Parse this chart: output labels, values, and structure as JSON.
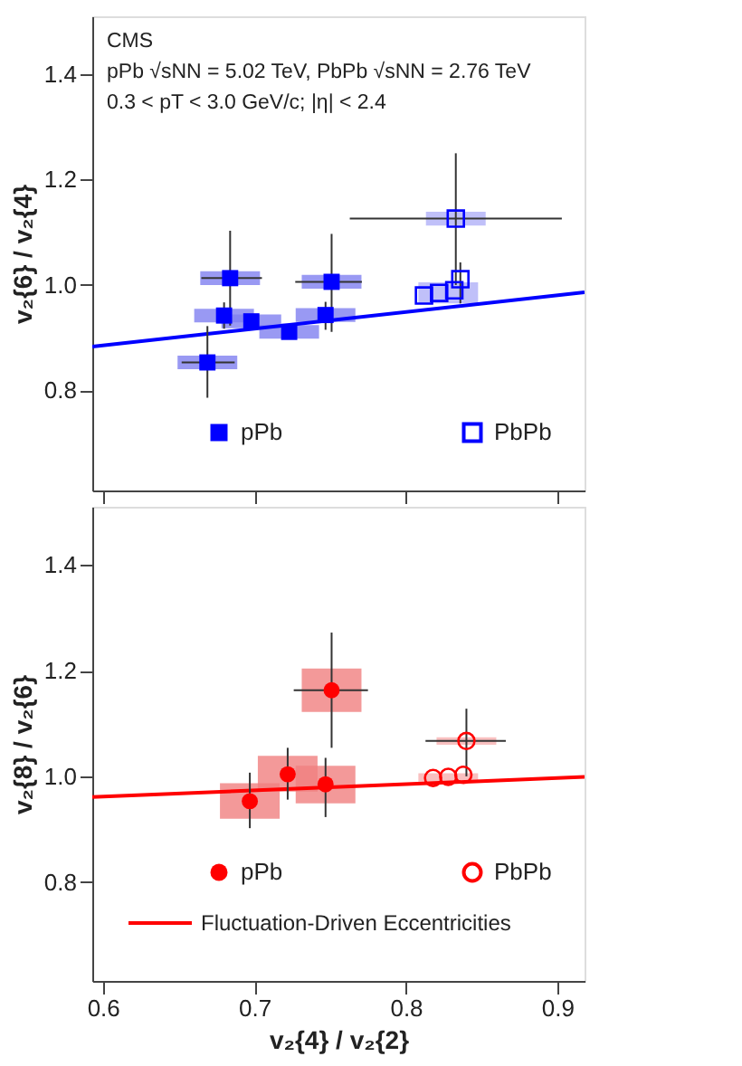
{
  "chart_data": [
    {
      "type": "scatter",
      "ylabel": "v₂{6} / v₂{4}",
      "xlim": [
        0.593,
        0.918
      ],
      "xticks": [
        0.6,
        0.7,
        0.8,
        0.9
      ],
      "ylim": [
        0.61,
        1.51
      ],
      "yticks": [
        0.8,
        {
          "value": 1.0,
          "label": "1.0"
        },
        1.2,
        1.4
      ],
      "tick_labels": "y",
      "grid": false,
      "legend": "bottom",
      "annotations": [
        "CMS",
        "pPb √sNN = 5.02 TeV, PbPb √sNN = 2.76 TeV",
        "0.3 < pT < 3.0 GeV/c; |η| < 2.4"
      ],
      "series": [
        {
          "type": "bar",
          "color": "#8080f0",
          "x": [
            0.669,
            0.68,
            0.684,
            0.698,
            0.723,
            0.747,
            0.751
          ],
          "base": [
            0.84,
            0.929,
            1.0,
            0.918,
            0.898,
            0.93,
            0.993
          ],
          "values": [
            0.026,
            0.026,
            0.026,
            0.026,
            0.026,
            0.026,
            0.026
          ]
        },
        {
          "type": "bar",
          "color": "#b0b0f8",
          "x": [
            0.828,
            0.833
          ],
          "base": [
            0.965,
            1.113
          ],
          "values": [
            0.04,
            0.026
          ]
        },
        {
          "type": "line",
          "color": "#0000ff",
          "x": [
            0.593,
            0.918
          ],
          "values": [
            0.883,
            0.986
          ]
        },
        {
          "name": "pPb",
          "color": "#0000ff",
          "marker": "square",
          "x": [
            0.669,
            0.68,
            0.684,
            0.698,
            0.723,
            0.747,
            0.751
          ],
          "values": [
            0.853,
            0.942,
            1.013,
            0.931,
            0.911,
            0.943,
            1.006
          ],
          "errors": [
            [
              0.786,
              0.922
            ],
            [
              0.917,
              0.967
            ],
            [
              0.923,
              1.103
            ],
            null,
            null,
            [
              0.915,
              0.968
            ],
            [
              0.911,
              1.097
            ]
          ],
          "xerrors": [
            [
              0.652,
              0.687
            ],
            null,
            [
              0.665,
              0.705
            ],
            null,
            null,
            null,
            [
              0.727,
              0.771
            ]
          ]
        },
        {
          "name": "PbPb",
          "color": "#0000ff",
          "marker": "square",
          "x": [
            0.812,
            0.822,
            0.832,
            0.833,
            0.836
          ],
          "values": [
            0.98,
            0.985,
            0.99,
            1.126,
            1.011
          ],
          "errors": [
            null,
            null,
            null,
            [
              1.0,
              1.25
            ],
            [
              0.965,
              1.043
            ]
          ],
          "xerrors": [
            null,
            null,
            null,
            [
              0.763,
              0.903
            ],
            null
          ]
        }
      ]
    },
    {
      "type": "scatter",
      "ylabel": "v₂{8} / v₂{6}",
      "xlabel": "v₂{4} / v₂{2}",
      "xlim": [
        0.593,
        0.918
      ],
      "xticks": [
        0.6,
        0.7,
        0.8,
        0.9
      ],
      "ylim": [
        0.613,
        1.51
      ],
      "yticks": [
        0.8,
        {
          "value": 1.0,
          "label": "1.0"
        },
        1.2,
        1.4
      ],
      "grid": false,
      "legend": "bottom",
      "series": [
        {
          "type": "bar",
          "color": "#f08080",
          "x": [
            0.697,
            0.722,
            0.747,
            0.751
          ],
          "base": [
            0.92,
            0.971,
            0.949,
            1.122
          ],
          "values": [
            0.067,
            0.068,
            0.071,
            0.082
          ]
        },
        {
          "type": "bar",
          "color": "#f8b0b0",
          "x": [
            0.828,
            0.84
          ],
          "base": [
            0.99,
            1.06
          ],
          "values": [
            0.016,
            0.014
          ]
        },
        {
          "type": "line",
          "name": "Fluctuation-Driven Eccentricities",
          "color": "#ff0000",
          "x": [
            0.593,
            0.918
          ],
          "values": [
            0.961,
            0.999
          ]
        },
        {
          "name": "pPb",
          "color": "#ff0000",
          "marker": "circle",
          "x": [
            0.697,
            0.722,
            0.747,
            0.751
          ],
          "values": [
            0.953,
            1.004,
            0.985,
            1.163
          ],
          "errors": [
            [
              0.902,
              1.007
            ],
            [
              0.956,
              1.054
            ],
            [
              0.923,
              1.035
            ],
            [
              1.054,
              1.272
            ]
          ],
          "xerrors": [
            null,
            null,
            null,
            [
              0.726,
              0.775
            ]
          ]
        },
        {
          "name": "PbPb",
          "color": "#ff0000",
          "marker": "circle",
          "x": [
            0.818,
            0.828,
            0.838,
            0.84
          ],
          "values": [
            0.997,
            0.999,
            1.003,
            1.067
          ],
          "errors": [
            null,
            null,
            null,
            [
              1.0,
              1.128
            ]
          ],
          "xerrors": [
            null,
            null,
            null,
            [
              0.813,
              0.866
            ]
          ]
        }
      ]
    }
  ]
}
